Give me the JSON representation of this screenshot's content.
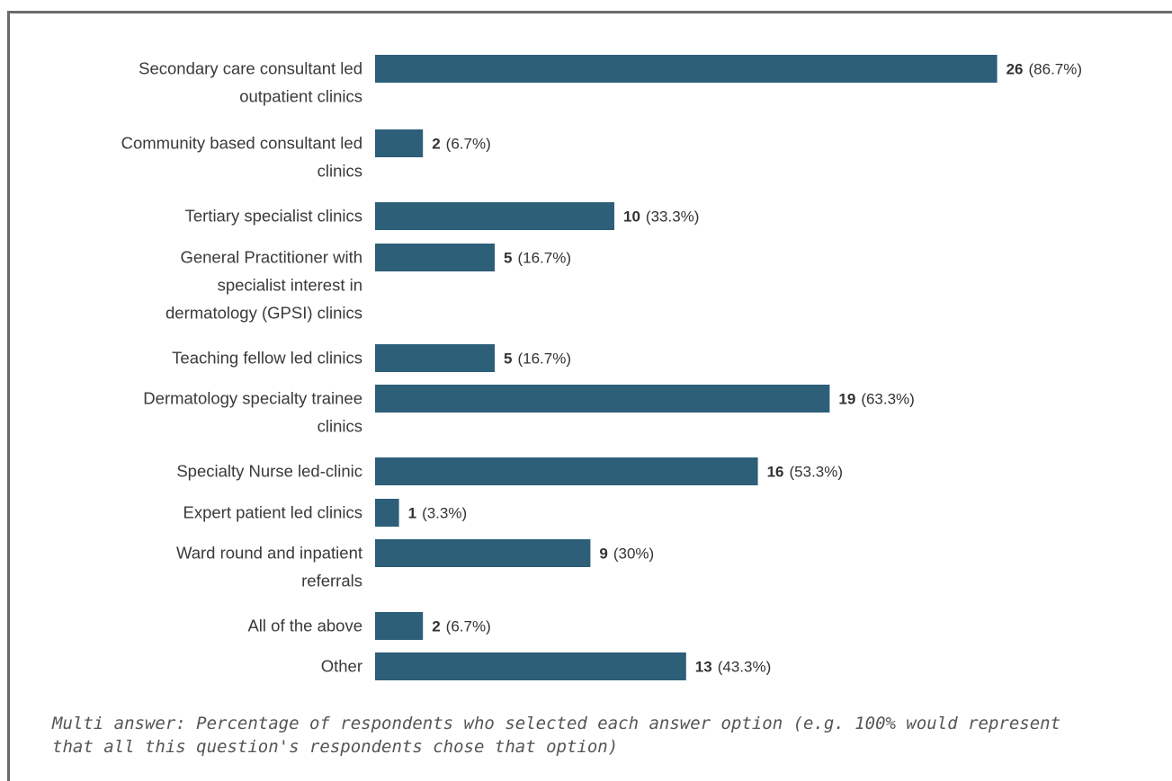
{
  "chart_data": {
    "type": "bar",
    "orientation": "horizontal",
    "bar_color": "#2d5f79",
    "categories": [
      "Secondary care consultant led outpatient clinics",
      "Community based consultant led clinics",
      "Tertiary specialist clinics",
      "General Practitioner with specialist interest in dermatology (GPSI) clinics",
      "Teaching fellow led clinics",
      "Dermatology specialty trainee clinics",
      "Specialty Nurse led-clinic",
      "Expert patient led clinics",
      "Ward round and inpatient referrals",
      "All of the above",
      "Other"
    ],
    "label_lines": [
      [
        "Secondary care consultant led",
        "outpatient clinics"
      ],
      [
        "Community based consultant led",
        "clinics"
      ],
      [
        "Tertiary specialist clinics"
      ],
      [
        "General Practitioner with",
        "specialist interest in",
        "dermatology (GPSI) clinics"
      ],
      [
        "Teaching fellow led clinics"
      ],
      [
        "Dermatology specialty trainee",
        "clinics"
      ],
      [
        "Specialty Nurse led-clinic"
      ],
      [
        "Expert patient led clinics"
      ],
      [
        "Ward round and inpatient",
        "referrals"
      ],
      [
        "All of the above"
      ],
      [
        "Other"
      ]
    ],
    "values": [
      26,
      2,
      10,
      5,
      5,
      19,
      16,
      1,
      9,
      2,
      13
    ],
    "percent_labels": [
      "(86.7%)",
      "(6.7%)",
      "(33.3%)",
      "(16.7%)",
      "(16.7%)",
      "(63.3%)",
      "(53.3%)",
      "(3.3%)",
      "(30%)",
      "(6.7%)",
      "(43.3%)"
    ],
    "xlim": [
      0,
      30
    ],
    "grid": false,
    "legend": "none"
  },
  "footnote": "Multi answer: Percentage of respondents who selected each answer option (e.g. 100% would represent that all this question's respondents chose that option)"
}
